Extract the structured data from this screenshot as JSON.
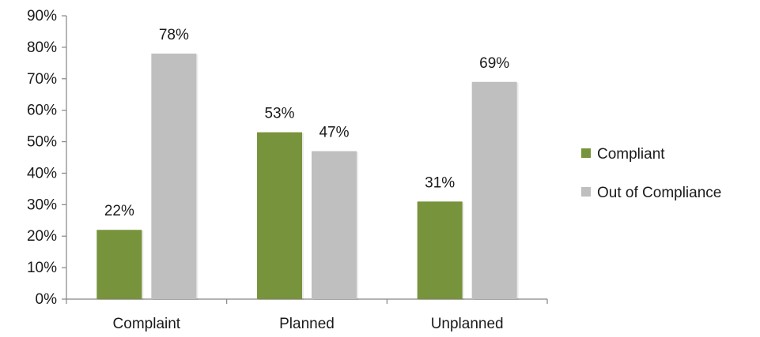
{
  "chart_data": {
    "type": "bar",
    "categories": [
      "Complaint",
      "Planned",
      "Unplanned"
    ],
    "series": [
      {
        "name": "Compliant",
        "values": [
          22,
          53,
          31
        ],
        "labels": [
          "22%",
          "53%",
          "31%"
        ],
        "color": "#77933c"
      },
      {
        "name": "Out of Compliance",
        "values": [
          78,
          47,
          69
        ],
        "labels": [
          "78%",
          "47%",
          "69%"
        ],
        "color": "#bfbfbf"
      }
    ],
    "ylim": [
      0,
      90
    ],
    "ytick_labels": [
      "0%",
      "10%",
      "20%",
      "30%",
      "40%",
      "50%",
      "60%",
      "70%",
      "80%",
      "90%"
    ],
    "ytick_values": [
      0,
      10,
      20,
      30,
      40,
      50,
      60,
      70,
      80,
      90
    ],
    "grid": false,
    "legend": "right",
    "title": "",
    "xlabel": "",
    "ylabel": ""
  }
}
